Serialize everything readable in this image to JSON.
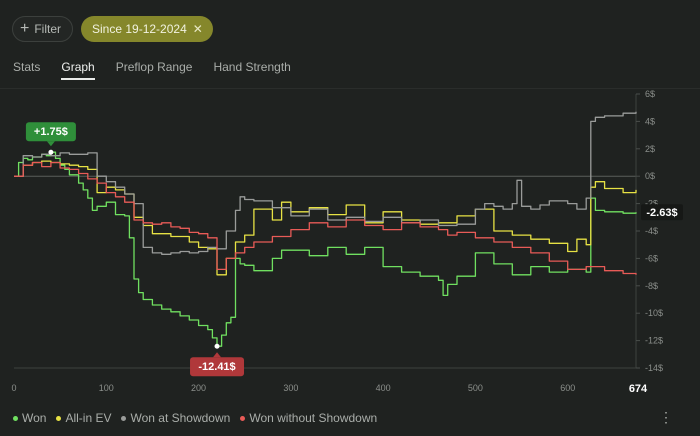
{
  "toolbar": {
    "filter_label": "Filter",
    "date_chip_label": "Since 19-12-2024",
    "chip_bg": "#85872b"
  },
  "tabs": [
    "Stats",
    "Graph",
    "Preflop Range",
    "Hand Strength"
  ],
  "active_tab": "Graph",
  "callouts": {
    "max": "+1.75$",
    "min": "-12.41$",
    "final": "-2.63$"
  },
  "legend": [
    "Won",
    "All-in EV",
    "Won at Showdown",
    "Won without Showdown"
  ],
  "colors": {
    "won": "#70e060",
    "allin": "#e7e244",
    "showdown": "#9a9c9a",
    "noshowdown": "#e85b57",
    "max_badge": "#2f8f3a",
    "min_badge": "#b0383a"
  },
  "chart_data": {
    "type": "line",
    "xlim": [
      0,
      674
    ],
    "ylim": [
      -14,
      6
    ],
    "x_ticks": [
      0,
      100,
      200,
      300,
      400,
      500,
      600
    ],
    "x_last_label": "674",
    "y_ticks": [
      6,
      4,
      2,
      0,
      -2,
      -4,
      -6,
      -8,
      -10,
      -12,
      -14
    ],
    "y_tick_labels": [
      "6$",
      "4$",
      "2$",
      "0$",
      "-2$",
      "-4$",
      "-6$",
      "-8$",
      "-10$",
      "-12$",
      "-14$"
    ],
    "series": [
      {
        "name": "Won",
        "x": [
          0,
          5,
          10,
          15,
          20,
          30,
          35,
          40,
          45,
          50,
          55,
          60,
          70,
          75,
          80,
          85,
          90,
          100,
          110,
          120,
          125,
          130,
          135,
          140,
          150,
          160,
          170,
          180,
          190,
          200,
          210,
          215,
          220,
          225,
          230,
          235,
          240,
          245,
          250,
          260,
          280,
          290,
          300,
          320,
          340,
          360,
          380,
          400,
          420,
          440,
          460,
          465,
          470,
          480,
          500,
          520,
          540,
          560,
          580,
          600,
          620,
          625,
          630,
          640,
          660,
          674
        ],
        "y": [
          0,
          1.0,
          1.3,
          1.2,
          1.4,
          1.6,
          1.5,
          1.75,
          1.3,
          0.8,
          0.5,
          0.1,
          -0.5,
          -1.0,
          -1.6,
          -2.5,
          -2.2,
          -1.9,
          -2.8,
          -2.9,
          -4.5,
          -7.5,
          -8.5,
          -9.0,
          -9.4,
          -9.7,
          -9.9,
          -10.2,
          -10.5,
          -10.9,
          -11.2,
          -11.8,
          -12.41,
          -11.6,
          -10.7,
          -10.3,
          -6.0,
          -6.4,
          -6.5,
          -6.9,
          -6.0,
          -5.4,
          -5.4,
          -5.8,
          -5.2,
          -5.7,
          -5.2,
          -6.6,
          -7.0,
          -7.3,
          -7.6,
          -8.7,
          -7.9,
          -7.3,
          -5.6,
          -6.4,
          -7.2,
          -6.6,
          -7.0,
          -6.8,
          -7.0,
          -1.6,
          -2.5,
          -2.6,
          -2.7,
          -2.63
        ]
      },
      {
        "name": "All-in EV",
        "x": [
          0,
          10,
          20,
          30,
          40,
          50,
          60,
          70,
          80,
          90,
          100,
          110,
          120,
          130,
          140,
          150,
          170,
          190,
          200,
          210,
          220,
          230,
          240,
          250,
          260,
          280,
          290,
          300,
          320,
          340,
          360,
          380,
          400,
          420,
          440,
          460,
          480,
          500,
          520,
          540,
          560,
          580,
          600,
          610,
          620,
          625,
          630,
          640,
          660,
          674
        ],
        "y": [
          0,
          0.8,
          1.0,
          1.1,
          1.0,
          0.9,
          0.8,
          0.7,
          0.5,
          -1.2,
          -0.8,
          -1.0,
          -1.3,
          -3.0,
          -3.6,
          -4.2,
          -4.4,
          -4.8,
          -5.2,
          -5.3,
          -7.2,
          -6.0,
          -4.8,
          -4.3,
          -2.4,
          -3.2,
          -1.9,
          -2.6,
          -2.3,
          -2.8,
          -2.1,
          -3.4,
          -2.6,
          -3.2,
          -3.5,
          -3.4,
          -2.9,
          -2.4,
          -4.0,
          -4.3,
          -4.6,
          -4.9,
          -5.5,
          -4.6,
          -5.0,
          -0.8,
          -0.4,
          -0.9,
          -1.2,
          -1.0
        ]
      },
      {
        "name": "Won at Showdown",
        "x": [
          0,
          10,
          20,
          30,
          40,
          50,
          60,
          70,
          80,
          90,
          100,
          110,
          120,
          130,
          140,
          150,
          160,
          170,
          180,
          190,
          200,
          210,
          220,
          230,
          240,
          245,
          250,
          260,
          280,
          300,
          320,
          340,
          360,
          380,
          400,
          420,
          440,
          460,
          480,
          500,
          510,
          520,
          530,
          540,
          545,
          550,
          560,
          570,
          580,
          600,
          610,
          620,
          625,
          630,
          640,
          660,
          674
        ],
        "y": [
          0,
          1.5,
          1.4,
          1.6,
          1.5,
          1.7,
          1.6,
          1.6,
          1.7,
          0.0,
          -0.4,
          -0.8,
          -1.3,
          -2.0,
          -5.2,
          -5.6,
          -5.7,
          -5.6,
          -5.5,
          -5.6,
          -5.5,
          -5.2,
          -5.3,
          -4.0,
          -2.5,
          -1.5,
          -1.7,
          -1.8,
          -2.3,
          -2.9,
          -2.4,
          -3.2,
          -3.0,
          -3.3,
          -3.0,
          -3.4,
          -3.2,
          -3.6,
          -3.5,
          -2.4,
          -2.0,
          -2.2,
          -2.4,
          -2.0,
          -0.3,
          -2.2,
          -2.4,
          -2.1,
          -1.8,
          -2.0,
          -2.4,
          -1.6,
          4.0,
          4.3,
          4.4,
          4.6,
          4.7
        ]
      },
      {
        "name": "Won without Showdown",
        "x": [
          0,
          10,
          20,
          30,
          40,
          50,
          60,
          70,
          80,
          90,
          100,
          110,
          120,
          130,
          140,
          150,
          160,
          170,
          180,
          190,
          200,
          210,
          220,
          230,
          240,
          250,
          260,
          280,
          300,
          320,
          340,
          360,
          380,
          400,
          420,
          440,
          460,
          470,
          480,
          500,
          520,
          540,
          560,
          580,
          600,
          620,
          640,
          660,
          674
        ],
        "y": [
          0,
          0.8,
          1.0,
          0.7,
          1.0,
          0.6,
          0.5,
          0.2,
          -0.2,
          -0.5,
          -1.2,
          -1.5,
          -1.9,
          -3.2,
          -3.4,
          -3.5,
          -3.4,
          -3.7,
          -3.8,
          -4.1,
          -4.2,
          -4.5,
          -6.8,
          -6.0,
          -5.6,
          -5.2,
          -4.8,
          -4.4,
          -3.9,
          -3.4,
          -3.7,
          -3.2,
          -3.6,
          -3.9,
          -3.4,
          -3.7,
          -3.9,
          -4.3,
          -4.1,
          -4.5,
          -4.8,
          -5.2,
          -5.6,
          -6.2,
          -6.8,
          -6.6,
          -6.9,
          -7.1,
          -7.2
        ]
      }
    ],
    "annotations": [
      {
        "label": "+1.75$",
        "x": 40,
        "y": 1.75,
        "style": "max"
      },
      {
        "label": "-12.41$",
        "x": 220,
        "y": -12.41,
        "style": "min"
      },
      {
        "label": "-2.63$",
        "x": 674,
        "y": -2.63,
        "style": "final"
      }
    ]
  }
}
